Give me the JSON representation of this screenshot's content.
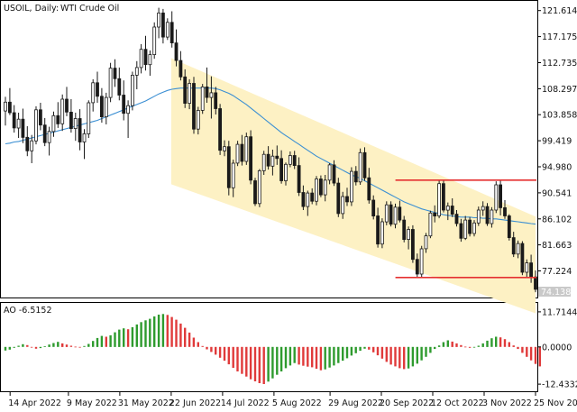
{
  "header": {
    "symbol_label": "USOIL, Daily:",
    "instrument_name": "WTI Crude Oil"
  },
  "indicator": {
    "label": "AO -6.5152"
  },
  "colors": {
    "bull": "#1a1a1a",
    "bear": "#1a1a1a",
    "ma_line": "#3b8fd3",
    "channel_fill": "#fdf1c4",
    "range_lines": "#e53030",
    "ao_up": "#2e9b2e",
    "ao_down": "#e03a3a",
    "price_tag_bg": "#c9c9c9",
    "axis_border": "#000000"
  },
  "chart_data": [
    {
      "type": "candlestick",
      "title": "USOIL, Daily: WTI Crude Oil",
      "yticks": [
        "121.614",
        "117.175",
        "112.735",
        "108.297",
        "103.858",
        "99.419",
        "94.980",
        "90.541",
        "86.102",
        "81.663",
        "77.224"
      ],
      "ylim": [
        73.0,
        122.8
      ],
      "current_price": "74.138",
      "x_dates": [
        "14 Apr 2022",
        "9 May 2022",
        "31 May 2022",
        "22 Jun 2022",
        "14 Jul 2022",
        "5 Aug 2022",
        "29 Aug 2022",
        "20 Sep 2022",
        "12 Oct 2022",
        "3 Nov 2022",
        "25 Nov 2022"
      ],
      "channel": {
        "start_date": "2022-06-22",
        "end_date": "2022-11-25",
        "upper_start": 113.5,
        "upper_end": 86.5,
        "lower_start": 92.0,
        "lower_end": 70.0
      },
      "range_box": {
        "top": 92.7,
        "bottom": 76.1,
        "start_date": "2022-09-26",
        "end_date": "2022-11-25"
      },
      "ma_series_name": "",
      "ohlc": [
        [
          104.5,
          106.9,
          102.0,
          106.0
        ],
        [
          106.0,
          108.4,
          103.8,
          104.2
        ],
        [
          104.2,
          105.5,
          100.8,
          101.6
        ],
        [
          101.6,
          104.2,
          99.9,
          103.1
        ],
        [
          103.1,
          104.9,
          99.0,
          100.0
        ],
        [
          100.0,
          101.9,
          96.8,
          97.7
        ],
        [
          97.7,
          100.4,
          95.6,
          99.4
        ],
        [
          99.4,
          105.3,
          98.8,
          104.7
        ],
        [
          104.7,
          105.9,
          101.2,
          102.1
        ],
        [
          102.1,
          103.3,
          98.5,
          99.1
        ],
        [
          99.1,
          101.8,
          96.9,
          101.0
        ],
        [
          101.0,
          104.4,
          100.1,
          103.7
        ],
        [
          103.7,
          106.0,
          101.6,
          102.3
        ],
        [
          102.3,
          107.3,
          101.1,
          106.5
        ],
        [
          106.5,
          108.6,
          103.6,
          104.3
        ],
        [
          104.3,
          106.5,
          100.8,
          101.5
        ],
        [
          101.5,
          104.2,
          99.4,
          103.2
        ],
        [
          103.2,
          104.8,
          97.8,
          99.2
        ],
        [
          99.2,
          101.4,
          96.3,
          100.6
        ],
        [
          100.6,
          106.3,
          99.9,
          105.9
        ],
        [
          105.9,
          109.9,
          104.4,
          109.3
        ],
        [
          109.3,
          111.2,
          105.9,
          107.0
        ],
        [
          107.0,
          108.4,
          102.5,
          103.5
        ],
        [
          103.5,
          107.6,
          102.2,
          106.8
        ],
        [
          106.8,
          112.7,
          106.0,
          111.8
        ],
        [
          111.8,
          113.3,
          108.6,
          110.0
        ],
        [
          110.0,
          111.9,
          106.3,
          107.2
        ],
        [
          107.2,
          109.7,
          102.9,
          104.1
        ],
        [
          104.1,
          106.3,
          99.9,
          105.4
        ],
        [
          105.4,
          111.2,
          104.6,
          110.6
        ],
        [
          110.6,
          113.0,
          108.2,
          111.9
        ],
        [
          111.9,
          115.9,
          110.9,
          115.0
        ],
        [
          115.0,
          117.3,
          111.4,
          112.4
        ],
        [
          112.4,
          114.8,
          110.5,
          114.1
        ],
        [
          114.1,
          119.6,
          113.4,
          118.8
        ],
        [
          118.8,
          122.1,
          116.9,
          121.2
        ],
        [
          121.2,
          121.9,
          116.0,
          117.1
        ],
        [
          117.1,
          120.3,
          116.6,
          119.6
        ],
        [
          119.6,
          121.5,
          115.3,
          116.1
        ],
        [
          116.1,
          118.4,
          112.1,
          113.1
        ],
        [
          113.1,
          114.7,
          109.7,
          110.3
        ],
        [
          110.3,
          111.6,
          105.0,
          105.8
        ],
        [
          105.8,
          109.9,
          104.8,
          109.2
        ],
        [
          109.2,
          110.3,
          100.6,
          101.4
        ],
        [
          101.4,
          105.2,
          100.5,
          104.6
        ],
        [
          104.6,
          109.1,
          104.0,
          108.6
        ],
        [
          108.6,
          111.9,
          105.9,
          106.8
        ],
        [
          106.8,
          110.4,
          103.2,
          107.6
        ],
        [
          107.6,
          108.6,
          103.9,
          104.9
        ],
        [
          104.9,
          105.7,
          97.0,
          97.8
        ],
        [
          97.7,
          99.5,
          96.8,
          98.4
        ],
        [
          98.4,
          99.4,
          90.1,
          91.4
        ],
        [
          91.4,
          96.2,
          89.8,
          95.6
        ],
        [
          95.6,
          99.4,
          95.1,
          98.8
        ],
        [
          98.8,
          100.4,
          95.2,
          95.9
        ],
        [
          95.9,
          100.8,
          95.3,
          100.1
        ],
        [
          100.1,
          101.2,
          92.0,
          92.7
        ],
        [
          92.6,
          93.1,
          88.3,
          88.7
        ],
        [
          88.7,
          94.6,
          88.1,
          94.3
        ],
        [
          94.3,
          97.7,
          93.6,
          97.1
        ],
        [
          97.1,
          98.5,
          94.5,
          95.1
        ],
        [
          95.1,
          97.9,
          93.5,
          96.8
        ],
        [
          96.8,
          98.6,
          95.3,
          96.4
        ],
        [
          96.4,
          97.8,
          92.1,
          92.6
        ],
        [
          92.6,
          95.7,
          91.8,
          95.4
        ],
        [
          95.4,
          97.6,
          94.9,
          96.9
        ],
        [
          96.9,
          97.7,
          94.6,
          95.2
        ],
        [
          95.2,
          96.6,
          90.0,
          90.6
        ],
        [
          90.6,
          91.8,
          87.6,
          88.2
        ],
        [
          88.2,
          90.9,
          86.6,
          90.5
        ],
        [
          90.5,
          91.3,
          88.6,
          89.1
        ],
        [
          89.1,
          93.4,
          88.4,
          92.9
        ],
        [
          92.9,
          93.5,
          89.8,
          90.2
        ],
        [
          90.2,
          93.6,
          89.1,
          92.7
        ],
        [
          92.7,
          95.6,
          92.0,
          95.3
        ],
        [
          95.3,
          96.1,
          91.7,
          92.2
        ],
        [
          92.2,
          93.1,
          86.4,
          87.0
        ],
        [
          87.0,
          90.7,
          86.1,
          89.9
        ],
        [
          89.9,
          91.4,
          88.3,
          89.0
        ],
        [
          89.0,
          94.9,
          88.3,
          94.2
        ],
        [
          94.2,
          95.1,
          91.8,
          92.4
        ],
        [
          92.4,
          98.1,
          91.9,
          97.4
        ],
        [
          97.4,
          98.3,
          92.6,
          93.1
        ],
        [
          93.1,
          94.8,
          88.7,
          89.3
        ],
        [
          89.3,
          90.1,
          86.0,
          86.6
        ],
        [
          86.6,
          88.0,
          81.2,
          81.8
        ],
        [
          81.8,
          86.2,
          81.1,
          85.6
        ],
        [
          85.6,
          89.1,
          85.0,
          88.5
        ],
        [
          88.5,
          89.1,
          84.8,
          85.2
        ],
        [
          85.2,
          88.7,
          84.5,
          88.1
        ],
        [
          88.1,
          89.2,
          85.5,
          85.9
        ],
        [
          85.9,
          86.6,
          82.1,
          82.6
        ],
        [
          82.6,
          84.8,
          80.9,
          84.3
        ],
        [
          84.3,
          85.0,
          78.6,
          79.2
        ],
        [
          79.2,
          80.2,
          76.1,
          76.7
        ],
        [
          76.7,
          81.5,
          76.2,
          81.0
        ],
        [
          81.0,
          83.7,
          80.3,
          83.2
        ],
        [
          83.2,
          87.5,
          82.8,
          87.1
        ],
        [
          87.1,
          88.4,
          85.5,
          86.6
        ],
        [
          86.6,
          92.7,
          86.2,
          92.1
        ],
        [
          92.1,
          92.6,
          87.2,
          87.6
        ],
        [
          87.6,
          88.9,
          85.9,
          88.3
        ],
        [
          88.3,
          89.6,
          86.4,
          86.9
        ],
        [
          86.9,
          87.6,
          84.8,
          85.3
        ],
        [
          85.3,
          86.1,
          82.2,
          82.8
        ],
        [
          82.8,
          86.6,
          82.5,
          85.9
        ],
        [
          85.9,
          86.4,
          83.1,
          83.6
        ],
        [
          83.6,
          85.9,
          83.1,
          85.4
        ],
        [
          85.4,
          88.2,
          84.9,
          87.6
        ],
        [
          87.6,
          89.1,
          86.6,
          88.2
        ],
        [
          88.2,
          88.8,
          84.9,
          85.3
        ],
        [
          85.3,
          88.1,
          84.6,
          87.6
        ],
        [
          87.6,
          92.5,
          87.1,
          91.9
        ],
        [
          91.9,
          92.7,
          86.7,
          88.0
        ],
        [
          88.0,
          89.3,
          86.1,
          86.6
        ],
        [
          86.6,
          86.9,
          82.4,
          82.9
        ],
        [
          82.9,
          83.9,
          79.6,
          80.1
        ],
        [
          80.1,
          82.4,
          79.4,
          81.9
        ],
        [
          81.9,
          82.3,
          76.5,
          77.0
        ],
        [
          77.0,
          79.2,
          76.2,
          78.6
        ],
        [
          78.6,
          80.0,
          75.2,
          76.2
        ],
        [
          76.2,
          77.3,
          73.6,
          74.1
        ]
      ],
      "ma_values": [
        98.9,
        99.0,
        99.2,
        99.3,
        99.5,
        99.7,
        99.9,
        100.1,
        100.3,
        100.5,
        100.7,
        100.9,
        101.1,
        101.3,
        101.5,
        101.7,
        101.9,
        102.1,
        102.3,
        102.5,
        102.7,
        102.9,
        103.2,
        103.5,
        103.8,
        104.1,
        104.4,
        104.7,
        105.0,
        105.3,
        105.6,
        105.9,
        106.2,
        106.6,
        107.0,
        107.4,
        107.7,
        108.0,
        108.2,
        108.3,
        108.4,
        108.4,
        108.4,
        108.4,
        108.4,
        108.4,
        108.4,
        108.4,
        108.3,
        108.1,
        107.8,
        107.5,
        107.1,
        106.6,
        106.1,
        105.6,
        105.0,
        104.4,
        103.8,
        103.2,
        102.6,
        102.0,
        101.4,
        100.8,
        100.3,
        99.8,
        99.3,
        98.8,
        98.3,
        97.8,
        97.3,
        96.8,
        96.4,
        96.0,
        95.6,
        95.2,
        94.8,
        94.4,
        94.0,
        93.6,
        93.3,
        93.0,
        92.6,
        92.2,
        91.8,
        91.4,
        91.0,
        90.6,
        90.2,
        89.8,
        89.4,
        89.0,
        88.7,
        88.4,
        88.1,
        87.8,
        87.6,
        87.4,
        87.2,
        87.0,
        86.8,
        86.7,
        86.6,
        86.5,
        86.4,
        86.4,
        86.4,
        86.3,
        86.3,
        86.2,
        86.2,
        86.1,
        86.1,
        86.0,
        85.9,
        85.8,
        85.7,
        85.6,
        85.5,
        85.4,
        85.3,
        85.2
      ]
    },
    {
      "type": "bar",
      "title": "AO -6.5152",
      "yticks": [
        "11.7144",
        "0.0000",
        "-12.4332"
      ],
      "ylim": [
        -13.6,
        12.9
      ],
      "values": [
        -1.2,
        -0.9,
        -0.3,
        0.4,
        0.9,
        0.6,
        -0.1,
        -0.6,
        -0.4,
        0.2,
        0.8,
        1.3,
        1.7,
        1.2,
        0.8,
        0.4,
        0.1,
        -0.2,
        0.3,
        1.0,
        2.0,
        3.0,
        3.7,
        3.4,
        3.9,
        4.9,
        5.8,
        6.2,
        5.9,
        6.6,
        7.5,
        8.3,
        8.9,
        9.4,
        10.2,
        10.8,
        11.0,
        10.7,
        10.0,
        9.1,
        7.8,
        6.4,
        4.8,
        3.1,
        1.6,
        0.3,
        -0.8,
        -1.7,
        -2.6,
        -3.6,
        -4.6,
        -5.8,
        -7.0,
        -8.2,
        -9.0,
        -9.9,
        -10.8,
        -11.5,
        -12.1,
        -12.4,
        -11.6,
        -10.5,
        -9.3,
        -8.2,
        -7.1,
        -6.2,
        -5.4,
        -5.9,
        -6.3,
        -6.6,
        -6.8,
        -7.3,
        -7.8,
        -7.5,
        -6.9,
        -6.2,
        -5.4,
        -4.6,
        -3.8,
        -2.9,
        -2.1,
        -1.3,
        -0.6,
        -0.9,
        -1.8,
        -2.8,
        -3.9,
        -5.0,
        -5.9,
        -6.5,
        -7.1,
        -7.4,
        -7.2,
        -6.5,
        -5.6,
        -4.5,
        -3.3,
        -2.0,
        -0.7,
        0.5,
        1.6,
        2.2,
        1.8,
        1.2,
        0.6,
        0.1,
        -0.3,
        -0.1,
        0.4,
        1.2,
        2.1,
        2.9,
        3.4,
        3.2,
        2.6,
        1.6,
        0.5,
        -0.7,
        -2.0,
        -3.3,
        -4.5,
        -5.7,
        -6.5
      ]
    }
  ]
}
